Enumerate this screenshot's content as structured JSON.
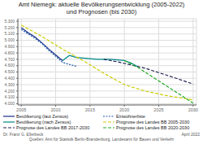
{
  "chart_data": {
    "type": "line",
    "title": "Amt Niemegk: aktuelle Bevölkerungsentwicklung (2005-2022)",
    "subtitle": "und Prognosen (bis 2030)",
    "xlim": [
      2004.5,
      2030.5
    ],
    "ylim": [
      3980,
      5340
    ],
    "xticks": [
      2005,
      2010,
      2015,
      2020,
      2025,
      2030
    ],
    "yticks": [
      {
        "value": 4000,
        "label": "4.000"
      },
      {
        "value": 4100,
        "label": "4.100"
      },
      {
        "value": 4200,
        "label": "4.200"
      },
      {
        "value": 4300,
        "label": "4.300"
      },
      {
        "value": 4400,
        "label": "4.400"
      },
      {
        "value": 4500,
        "label": "4.500"
      },
      {
        "value": 4600,
        "label": "4.600"
      },
      {
        "value": 4700,
        "label": "4.700"
      },
      {
        "value": 4800,
        "label": "4.800"
      },
      {
        "value": 4900,
        "label": "4.900"
      },
      {
        "value": 5000,
        "label": "5.000"
      },
      {
        "value": 5100,
        "label": "5.100"
      },
      {
        "value": 5200,
        "label": "5.200"
      },
      {
        "value": 5300,
        "label": "5.300"
      }
    ],
    "grid": true,
    "legend": "lower left",
    "series": [
      {
        "name": "Bevölkerung (laut Zensus)",
        "color": "#1a2d8a",
        "line_style": "solid",
        "x": [
          2005,
          2006,
          2007,
          2008,
          2009,
          2010,
          2011
        ],
        "values": [
          5200,
          5120,
          5050,
          4960,
          4860,
          4770,
          4680
        ]
      },
      {
        "name": "Einwohnerliste",
        "color": "#1a5aaa",
        "line_style": "dotted",
        "x": [
          2005,
          2006,
          2007,
          2008,
          2009,
          2010,
          2011,
          2012,
          2013
        ],
        "values": [
          5170,
          5100,
          5030,
          4950,
          4840,
          4750,
          4650,
          4620,
          4590
        ]
      },
      {
        "name": "Bevölkerung (nach Zensus)",
        "color": "#008888",
        "line_style": "solid",
        "x": [
          2011,
          2012,
          2013,
          2014,
          2015,
          2016,
          2017,
          2018,
          2019,
          2020,
          2021,
          2022
        ],
        "values": [
          4680,
          4760,
          4730,
          4720,
          4710,
          4700,
          4700,
          4700,
          4690,
          4680,
          4640,
          4580
        ]
      },
      {
        "name": "Prognose des Landes BB 2005-2030",
        "color": "#cccc00",
        "line_style": "dashed",
        "x": [
          2005,
          2008,
          2011,
          2014,
          2017,
          2020,
          2023,
          2026,
          2030
        ],
        "values": [
          5240,
          5060,
          4860,
          4680,
          4480,
          4300,
          4200,
          4130,
          4060
        ]
      },
      {
        "name": "Prognose des Landes BB 2017-2030",
        "color": "#222255",
        "line_style": "dashed",
        "x": [
          2017,
          2019,
          2021,
          2023,
          2025,
          2027,
          2030
        ],
        "values": [
          4700,
          4660,
          4610,
          4560,
          4490,
          4420,
          4310
        ]
      },
      {
        "name": "Prognose des Landes BB 2020-2030",
        "color": "#22aa22",
        "line_style": "dashed",
        "x": [
          2020,
          2022,
          2024,
          2026,
          2028,
          2030
        ],
        "values": [
          4680,
          4570,
          4430,
          4290,
          4150,
          4010
        ]
      }
    ],
    "annotations": [
      "Dr. Franz G. Ellerbeck",
      "Quellen: Amt für Statistik Berlin-Brandenburg, Landesamt für Bauen und Verkehr",
      "April 2022"
    ]
  }
}
